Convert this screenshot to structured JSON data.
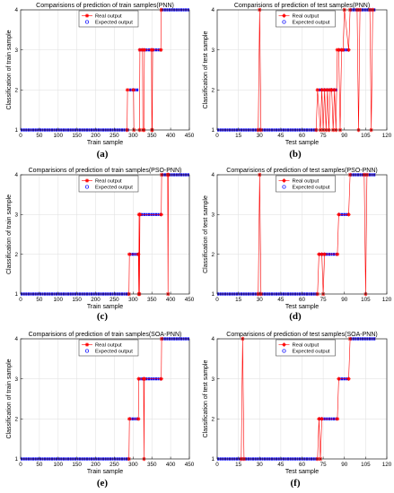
{
  "figure": {
    "panels": [
      {
        "id": "a",
        "caption": "(a)",
        "chart_data": {
          "type": "line",
          "title": "Comparisions of prediction of train samples(PNN)",
          "xlabel": "Train sample",
          "ylabel": "Classification of train sample",
          "xlim": [
            0,
            450
          ],
          "ylim": [
            1,
            4
          ],
          "xticks": [
            0,
            50,
            100,
            150,
            200,
            250,
            300,
            350,
            400,
            450
          ],
          "yticks": [
            1,
            2,
            3,
            4
          ],
          "grid": true,
          "legend": "top-center",
          "series": [
            {
              "name": "Real output",
              "color": "#ff0000",
              "marker": "*",
              "x": [
                0,
                284,
                285,
                301,
                302,
                317,
                318,
                325,
                326,
                329,
                330,
                349,
                350,
                351,
                352,
                374,
                375,
                376,
                377,
                450
              ],
              "y": [
                1,
                1,
                2,
                2,
                1,
                1,
                3,
                3,
                1,
                1,
                3,
                3,
                1,
                1,
                3,
                3,
                4,
                4,
                4,
                4
              ]
            },
            {
              "name": "Expected output",
              "color": "#0000ff",
              "marker": "o",
              "x": [
                0,
                289,
                290,
                314,
                315,
                375,
                376,
                450
              ],
              "y": [
                1,
                1,
                2,
                2,
                3,
                3,
                4,
                4
              ]
            }
          ]
        }
      },
      {
        "id": "b",
        "caption": "(b)",
        "chart_data": {
          "type": "line",
          "title": "Comparisions of prediction of test samples(PNN)",
          "xlabel": "Test sample",
          "ylabel": "Classification of test sample",
          "xlim": [
            0,
            120
          ],
          "ylim": [
            1,
            4
          ],
          "xticks": [
            0,
            15,
            30,
            45,
            60,
            75,
            90,
            105,
            120
          ],
          "yticks": [
            1,
            2,
            3,
            4
          ],
          "grid": true,
          "legend": "top-center",
          "series": [
            {
              "name": "Real output",
              "color": "#ff0000",
              "marker": "*",
              "x": [
                0,
                29,
                30,
                31,
                70,
                71,
                73,
                74,
                75,
                76,
                77,
                78,
                79,
                80,
                81,
                82,
                83,
                84,
                85,
                86,
                87,
                88,
                89,
                90,
                93,
                94,
                95,
                96,
                97,
                98,
                99,
                100,
                101,
                102,
                103,
                104,
                105,
                106,
                107,
                108,
                109,
                110,
                111,
                112
              ],
              "y": [
                1,
                1,
                4,
                1,
                1,
                2,
                1,
                2,
                1,
                2,
                1,
                2,
                1,
                2,
                2,
                1,
                2,
                1,
                3,
                3,
                1,
                3,
                3,
                4,
                3,
                4,
                4,
                4,
                4,
                4,
                4,
                1,
                4,
                4,
                4,
                4,
                4,
                4,
                4,
                4,
                1,
                4,
                4,
                4
              ]
            },
            {
              "name": "Expected output",
              "color": "#0000ff",
              "marker": "o",
              "x": [
                0,
                71,
                72,
                85,
                86,
                93,
                94,
                112
              ],
              "y": [
                1,
                1,
                2,
                2,
                3,
                3,
                4,
                4
              ]
            }
          ]
        }
      },
      {
        "id": "c",
        "caption": "(c)",
        "chart_data": {
          "type": "line",
          "title": "Comparisions of prediction of train samples(PSO-PNN)",
          "xlabel": "Train sample",
          "ylabel": "Classification of train sample",
          "xlim": [
            0,
            450
          ],
          "ylim": [
            1,
            4
          ],
          "xticks": [
            0,
            50,
            100,
            150,
            200,
            250,
            300,
            350,
            400,
            450
          ],
          "yticks": [
            1,
            2,
            3,
            4
          ],
          "grid": true,
          "legend": "top-center",
          "series": [
            {
              "name": "Real output",
              "color": "#ff0000",
              "marker": "*",
              "x": [
                0,
                289,
                290,
                314,
                315,
                316,
                317,
                318,
                375,
                376,
                392,
                393,
                394,
                450
              ],
              "y": [
                1,
                1,
                2,
                2,
                1,
                3,
                1,
                3,
                3,
                4,
                4,
                1,
                4,
                4
              ]
            },
            {
              "name": "Expected output",
              "color": "#0000ff",
              "marker": "o",
              "x": [
                0,
                289,
                290,
                314,
                315,
                375,
                376,
                450
              ],
              "y": [
                1,
                1,
                2,
                2,
                3,
                3,
                4,
                4
              ]
            }
          ]
        }
      },
      {
        "id": "d",
        "caption": "(d)",
        "chart_data": {
          "type": "line",
          "title": "Comparisions of prediction of test samples(PSO-PNN)",
          "xlabel": "Test sample",
          "ylabel": "Classification of test sample",
          "xlim": [
            0,
            120
          ],
          "ylim": [
            1,
            4
          ],
          "xticks": [
            0,
            15,
            30,
            45,
            60,
            75,
            90,
            105,
            120
          ],
          "yticks": [
            1,
            2,
            3,
            4
          ],
          "grid": true,
          "legend": "top-center",
          "series": [
            {
              "name": "Real output",
              "color": "#ff0000",
              "marker": "*",
              "x": [
                0,
                29,
                30,
                31,
                71,
                72,
                74,
                75,
                76,
                85,
                86,
                93,
                94,
                104,
                105,
                106,
                112
              ],
              "y": [
                1,
                1,
                4,
                1,
                1,
                2,
                2,
                1,
                2,
                2,
                3,
                3,
                4,
                4,
                1,
                4,
                4
              ]
            },
            {
              "name": "Expected output",
              "color": "#0000ff",
              "marker": "o",
              "x": [
                0,
                71,
                72,
                85,
                86,
                93,
                94,
                112
              ],
              "y": [
                1,
                1,
                2,
                2,
                3,
                3,
                4,
                4
              ]
            }
          ]
        }
      },
      {
        "id": "e",
        "caption": "(e)",
        "chart_data": {
          "type": "line",
          "title": "Comparisions of prediction of train samples(SOA-PNN)",
          "xlabel": "Train sample",
          "ylabel": "Classification of train sample",
          "xlim": [
            0,
            450
          ],
          "ylim": [
            1,
            4
          ],
          "xticks": [
            0,
            50,
            100,
            150,
            200,
            250,
            300,
            350,
            400,
            450
          ],
          "yticks": [
            1,
            2,
            3,
            4
          ],
          "grid": true,
          "legend": "top-center",
          "series": [
            {
              "name": "Real output",
              "color": "#ff0000",
              "marker": "*",
              "x": [
                0,
                289,
                290,
                314,
                315,
                328,
                329,
                330,
                375,
                376,
                450
              ],
              "y": [
                1,
                1,
                2,
                2,
                3,
                3,
                1,
                3,
                3,
                4,
                4
              ]
            },
            {
              "name": "Expected output",
              "color": "#0000ff",
              "marker": "o",
              "x": [
                0,
                289,
                290,
                314,
                315,
                375,
                376,
                450
              ],
              "y": [
                1,
                1,
                2,
                2,
                3,
                3,
                4,
                4
              ]
            }
          ]
        }
      },
      {
        "id": "f",
        "caption": "(f)",
        "chart_data": {
          "type": "line",
          "title": "Comparisions of prediction of test samples(SOA-PNN)",
          "xlabel": "Test sample",
          "ylabel": "Classification of test sample",
          "xlim": [
            0,
            120
          ],
          "ylim": [
            1,
            4
          ],
          "xticks": [
            0,
            15,
            30,
            45,
            60,
            75,
            90,
            105,
            120
          ],
          "yticks": [
            1,
            2,
            3,
            4
          ],
          "grid": true,
          "legend": "top-center",
          "series": [
            {
              "name": "Real output",
              "color": "#ff0000",
              "marker": "*",
              "x": [
                0,
                17,
                18,
                19,
                71,
                72,
                73,
                74,
                75,
                85,
                86,
                93,
                94,
                112
              ],
              "y": [
                1,
                1,
                4,
                1,
                1,
                2,
                1,
                2,
                2,
                2,
                3,
                3,
                4,
                4
              ]
            },
            {
              "name": "Expected output",
              "color": "#0000ff",
              "marker": "o",
              "x": [
                0,
                71,
                72,
                85,
                86,
                93,
                94,
                112
              ],
              "y": [
                1,
                1,
                2,
                2,
                3,
                3,
                4,
                4
              ]
            }
          ]
        }
      }
    ]
  }
}
